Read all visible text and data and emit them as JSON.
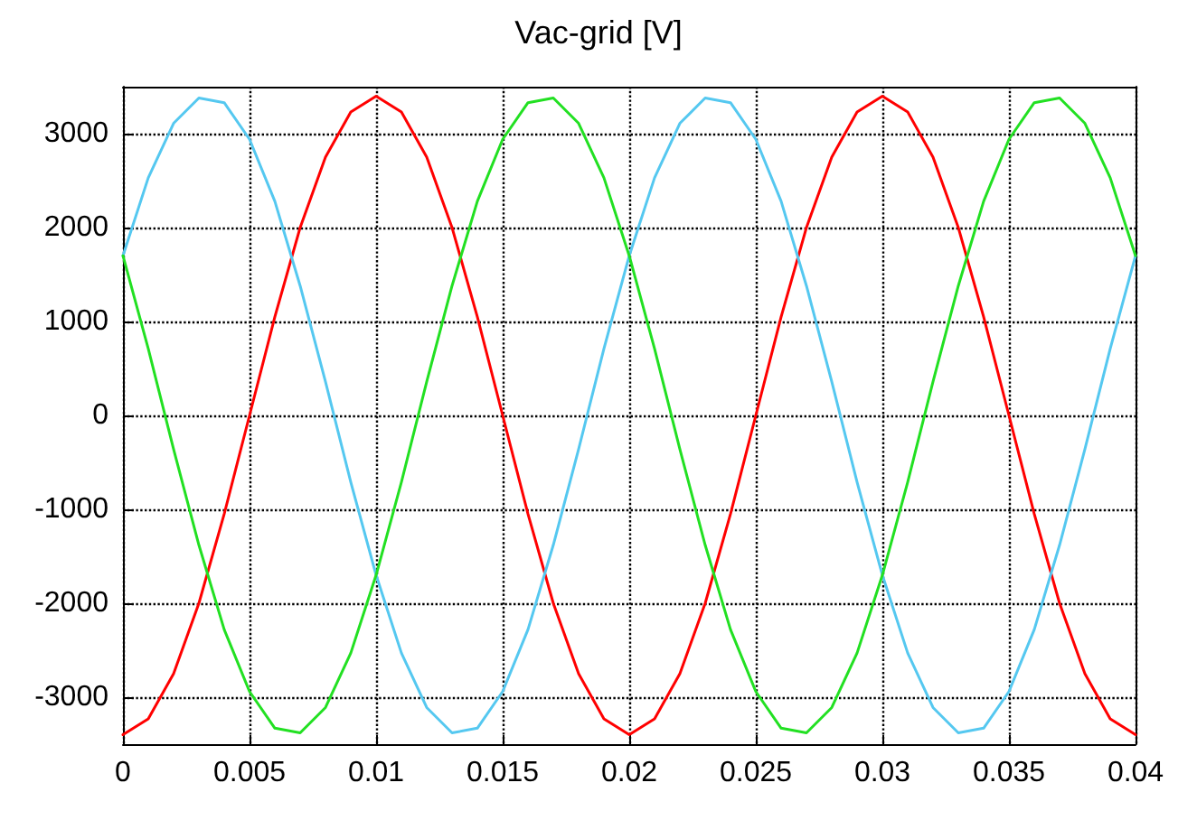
{
  "chart_data": {
    "type": "line",
    "title": "Vac-grid [V]",
    "x": [
      0,
      0.001,
      0.002,
      0.003,
      0.004,
      0.005,
      0.006,
      0.007,
      0.008,
      0.009,
      0.01,
      0.011,
      0.012,
      0.013,
      0.014,
      0.015,
      0.016,
      0.017,
      0.018,
      0.019,
      0.02,
      0.021,
      0.022,
      0.023,
      0.024,
      0.025,
      0.026,
      0.027,
      0.028,
      0.029,
      0.03,
      0.031,
      0.032,
      0.033,
      0.034,
      0.035,
      0.036,
      0.037,
      0.038,
      0.039,
      0.04
    ],
    "series": [
      {
        "color": "#ff0000",
        "values": [
          -3400,
          -3230,
          -2750,
          -2000,
          -1050,
          0,
          1050,
          2000,
          2750,
          3230,
          3400,
          3230,
          2750,
          2000,
          1050,
          0,
          -1050,
          -2000,
          -2750,
          -3230,
          -3400,
          -3230,
          -2750,
          -2000,
          -1050,
          0,
          1050,
          2000,
          2750,
          3230,
          3400,
          3230,
          2750,
          2000,
          1050,
          0,
          -1050,
          -2000,
          -2750,
          -3230,
          -3400
        ]
      },
      {
        "color": "#55c8f0",
        "values": [
          1700,
          2530,
          3110,
          3380,
          3330,
          2940,
          2280,
          1380,
          360,
          -710,
          -1700,
          -2530,
          -3110,
          -3380,
          -3330,
          -2940,
          -2280,
          -1380,
          -360,
          710,
          1700,
          2530,
          3110,
          3380,
          3330,
          2940,
          2280,
          1380,
          360,
          -710,
          -1700,
          -2530,
          -3110,
          -3380,
          -3330,
          -2940,
          -2280,
          -1380,
          -360,
          710,
          1700
        ]
      },
      {
        "color": "#22e022",
        "values": [
          1700,
          710,
          -360,
          -1380,
          -2280,
          -2940,
          -3330,
          -3380,
          -3110,
          -2530,
          -1700,
          -710,
          360,
          1380,
          2280,
          2940,
          3330,
          3380,
          3110,
          2530,
          1700,
          710,
          -360,
          -1380,
          -2280,
          -2940,
          -3330,
          -3380,
          -3110,
          -2530,
          -1700,
          -710,
          360,
          1380,
          2280,
          2940,
          3330,
          3380,
          3110,
          2530,
          1700
        ]
      }
    ],
    "xlim": [
      0,
      0.04
    ],
    "xticks": [
      0,
      0.005,
      0.01,
      0.015,
      0.02,
      0.025,
      0.03,
      0.035,
      0.04
    ],
    "ylim": [
      -3500,
      3500
    ],
    "yticks": [
      -3000,
      -2000,
      -1000,
      0,
      1000,
      2000,
      3000
    ],
    "grid": true,
    "marker": "none",
    "line_style": "solid"
  }
}
